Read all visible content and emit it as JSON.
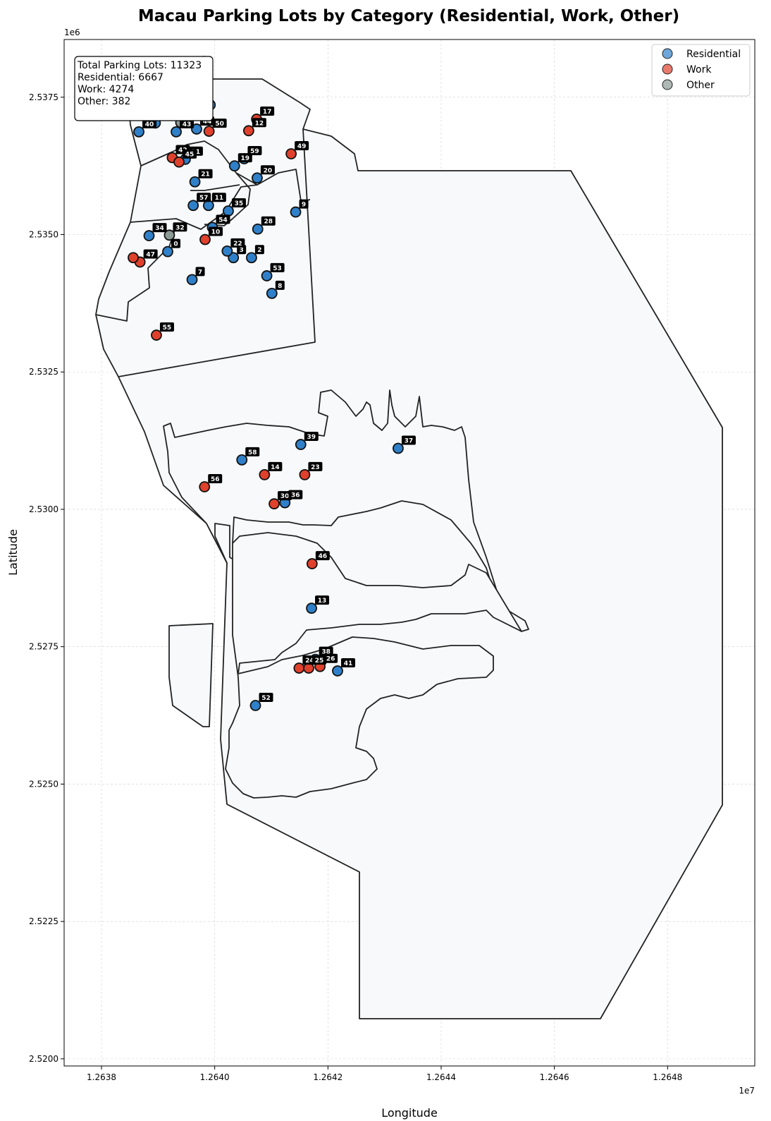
{
  "figure": {
    "title": "Macau Parking Lots by Category (Residential, Work, Other)",
    "xlabel": "Longitude",
    "ylabel": "Latitude",
    "x_offset_label": "1e7",
    "y_offset_label": "1e6"
  },
  "colors": {
    "residential": "#2f80c9",
    "work": "#e0412c",
    "other": "#8c9a96",
    "land": "#f7f9fb",
    "border": "#222222",
    "label_bg": "#000000"
  },
  "stats": {
    "lines": [
      "Total Parking Lots: 11323",
      "Residential: 6667",
      "Work: 4274",
      "Other: 382"
    ]
  },
  "legend": {
    "items": [
      {
        "label": "Residential",
        "key": "residential"
      },
      {
        "label": "Work",
        "key": "work"
      },
      {
        "label": "Other",
        "key": "other"
      }
    ]
  },
  "chart_data": {
    "type": "scatter",
    "title": "Macau Parking Lots by Category (Residential, Work, Other)",
    "xlabel": "Longitude",
    "ylabel": "Latitude",
    "xlim": [
      12637340,
      12649540
    ],
    "ylim": [
      2519870,
      2538550
    ],
    "x_ticks": [
      {
        "v": 12638000,
        "label": "1.2638"
      },
      {
        "v": 12640000,
        "label": "1.2640"
      },
      {
        "v": 12642000,
        "label": "1.2642"
      },
      {
        "v": 12644000,
        "label": "1.2644"
      },
      {
        "v": 12646000,
        "label": "1.2646"
      },
      {
        "v": 12648000,
        "label": "1.2648"
      }
    ],
    "y_ticks": [
      {
        "v": 2520000,
        "label": "2.5200"
      },
      {
        "v": 2522500,
        "label": "2.5225"
      },
      {
        "v": 2525000,
        "label": "2.5250"
      },
      {
        "v": 2527500,
        "label": "2.5275"
      },
      {
        "v": 2530000,
        "label": "2.5300"
      },
      {
        "v": 2532500,
        "label": "2.5325"
      },
      {
        "v": 2535000,
        "label": "2.5350"
      },
      {
        "v": 2537500,
        "label": "2.5375"
      }
    ],
    "grid": true,
    "legend_position": "top-right",
    "points": [
      {
        "id": "0",
        "cat": "residential",
        "x": 12639170,
        "y": 2534690
      },
      {
        "id": "2",
        "cat": "residential",
        "x": 12640650,
        "y": 2534580
      },
      {
        "id": "3",
        "cat": "residential",
        "x": 12640330,
        "y": 2534580
      },
      {
        "id": "7",
        "cat": "residential",
        "x": 12639600,
        "y": 2534180
      },
      {
        "id": "8",
        "cat": "residential",
        "x": 12641010,
        "y": 2533930
      },
      {
        "id": "9",
        "cat": "residential",
        "x": 12641430,
        "y": 2535410
      },
      {
        "id": "10",
        "cat": "work",
        "x": 12639830,
        "y": 2534910
      },
      {
        "id": "11",
        "cat": "residential",
        "x": 12639890,
        "y": 2535530
      },
      {
        "id": "12",
        "cat": "work",
        "x": 12640600,
        "y": 2536890
      },
      {
        "id": "13",
        "cat": "residential",
        "x": 12641710,
        "y": 2528200
      },
      {
        "id": "14",
        "cat": "work",
        "x": 12640880,
        "y": 2530630
      },
      {
        "id": "15",
        "cat": "residential",
        "x": 12638950,
        "y": 2537030
      },
      {
        "id": "17",
        "cat": "work",
        "x": 12640740,
        "y": 2537100
      },
      {
        "id": "19",
        "cat": "residential",
        "x": 12640350,
        "y": 2536250
      },
      {
        "id": "20",
        "cat": "residential",
        "x": 12640750,
        "y": 2536030
      },
      {
        "id": "21",
        "cat": "residential",
        "x": 12639650,
        "y": 2535960
      },
      {
        "id": "22",
        "cat": "residential",
        "x": 12640220,
        "y": 2534700
      },
      {
        "id": "23",
        "cat": "work",
        "x": 12641590,
        "y": 2530630
      },
      {
        "id": "24",
        "cat": "work",
        "x": 12641490,
        "y": 2527110
      },
      {
        "id": "25",
        "cat": "work",
        "x": 12641660,
        "y": 2527110
      },
      {
        "id": "26",
        "cat": "work",
        "x": 12641860,
        "y": 2527140
      },
      {
        "id": "27",
        "cat": "other",
        "x": 12639400,
        "y": 2537040
      },
      {
        "id": "28",
        "cat": "residential",
        "x": 12640760,
        "y": 2535100
      },
      {
        "id": "30",
        "cat": "work",
        "x": 12641050,
        "y": 2530100
      },
      {
        "id": "31",
        "cat": "residential",
        "x": 12639480,
        "y": 2536370
      },
      {
        "id": "32",
        "cat": "other",
        "x": 12639200,
        "y": 2534990
      },
      {
        "id": "34",
        "cat": "residential",
        "x": 12638840,
        "y": 2534980
      },
      {
        "id": "35",
        "cat": "residential",
        "x": 12640240,
        "y": 2535430
      },
      {
        "id": "36",
        "cat": "residential",
        "x": 12641240,
        "y": 2530120
      },
      {
        "id": "37",
        "cat": "residential",
        "x": 12643240,
        "y": 2531110
      },
      {
        "id": "38",
        "cat": "residential",
        "x": 12641780,
        "y": 2527270
      },
      {
        "id": "39",
        "cat": "residential",
        "x": 12641520,
        "y": 2531180
      },
      {
        "id": "40",
        "cat": "residential",
        "x": 12638660,
        "y": 2536870
      },
      {
        "id": "41",
        "cat": "residential",
        "x": 12642170,
        "y": 2527060
      },
      {
        "id": "42",
        "cat": "work",
        "x": 12639250,
        "y": 2536400
      },
      {
        "id": "43",
        "cat": "residential",
        "x": 12639320,
        "y": 2536870
      },
      {
        "id": "44",
        "cat": "residential",
        "x": 12639680,
        "y": 2536920
      },
      {
        "id": "45",
        "cat": "work",
        "x": 12639370,
        "y": 2536320
      },
      {
        "id": "46",
        "cat": "work",
        "x": 12641720,
        "y": 2529010
      },
      {
        "id": "47",
        "cat": "work",
        "x": 12638680,
        "y": 2534500
      },
      {
        "id": "48",
        "cat": "other",
        "x": 12639650,
        "y": 2537200
      },
      {
        "id": "49",
        "cat": "work",
        "x": 12641350,
        "y": 2536470
      },
      {
        "id": "50",
        "cat": "work",
        "x": 12639900,
        "y": 2536880
      },
      {
        "id": "52",
        "cat": "residential",
        "x": 12640720,
        "y": 2526430
      },
      {
        "id": "53",
        "cat": "residential",
        "x": 12640920,
        "y": 2534250
      },
      {
        "id": "54",
        "cat": "residential",
        "x": 12639960,
        "y": 2535130
      },
      {
        "id": "55",
        "cat": "work",
        "x": 12638970,
        "y": 2533170
      },
      {
        "id": "56",
        "cat": "work",
        "x": 12639820,
        "y": 2530410
      },
      {
        "id": "57",
        "cat": "residential",
        "x": 12639620,
        "y": 2535530
      },
      {
        "id": "58",
        "cat": "residential",
        "x": 12640480,
        "y": 2530900
      },
      {
        "id": "59",
        "cat": "residential",
        "x": 12640520,
        "y": 2536380
      },
      {
        "id": "",
        "cat": "work",
        "x": 12638560,
        "y": 2534580
      },
      {
        "id": "",
        "cat": "residential",
        "x": 12639920,
        "y": 2537360
      }
    ]
  }
}
